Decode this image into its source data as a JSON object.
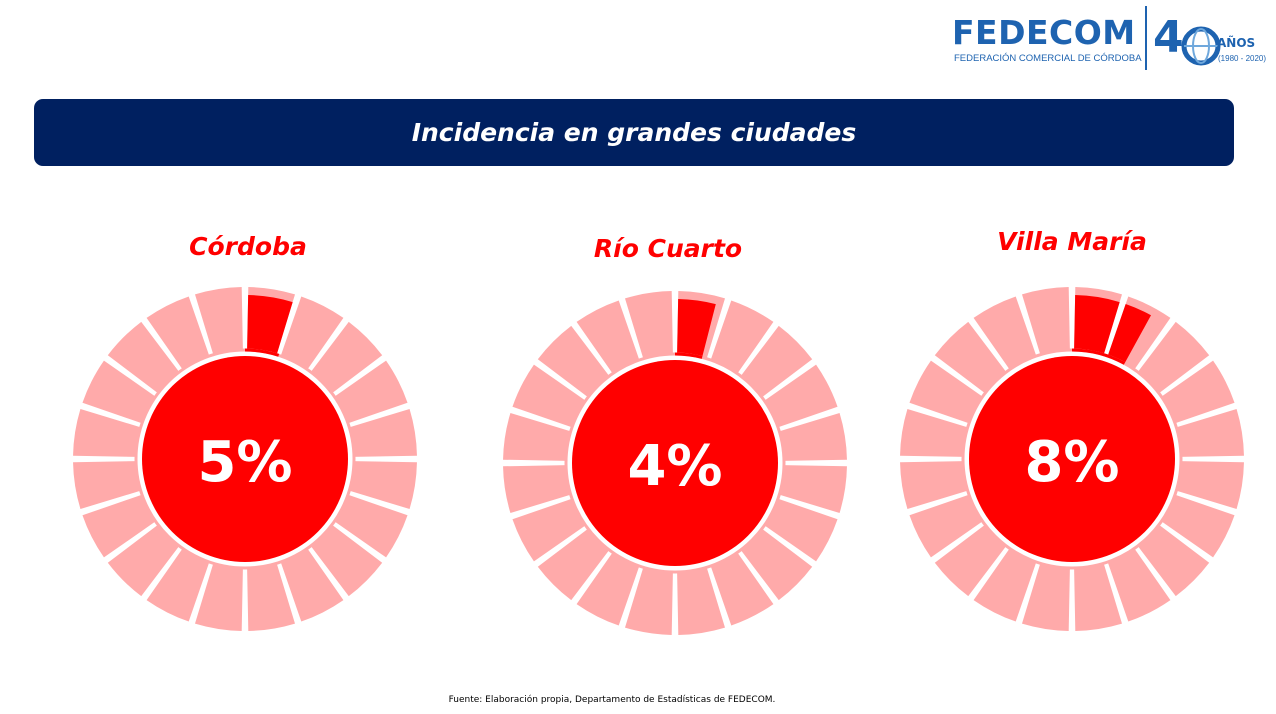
{
  "logo": {
    "name": "FEDECOM",
    "subtitle": "FEDERACIÓN COMERCIAL DE CÓRDOBA",
    "anniversary_digit": "4",
    "anniversary_word": "AÑOS",
    "anniversary_years": "(1980 - 2020)",
    "color": "#1e63b0"
  },
  "banner": {
    "title": "Incidencia en grandes ciudades",
    "background": "#002060"
  },
  "chart_data": [
    {
      "type": "pie",
      "title": "Córdoba",
      "value_percent": 5,
      "label": "5%"
    },
    {
      "type": "pie",
      "title": "Río Cuarto",
      "value_percent": 4,
      "label": "4%"
    },
    {
      "type": "pie",
      "title": "Villa María",
      "value_percent": 8,
      "label": "8%"
    }
  ],
  "colors": {
    "highlight": "#ff0000",
    "remainder": "#ffaaaa",
    "center_text": "#ffffff"
  },
  "footer": {
    "source": "Fuente: Elaboración propia, Departamento de Estadísticas de FEDECOM."
  }
}
